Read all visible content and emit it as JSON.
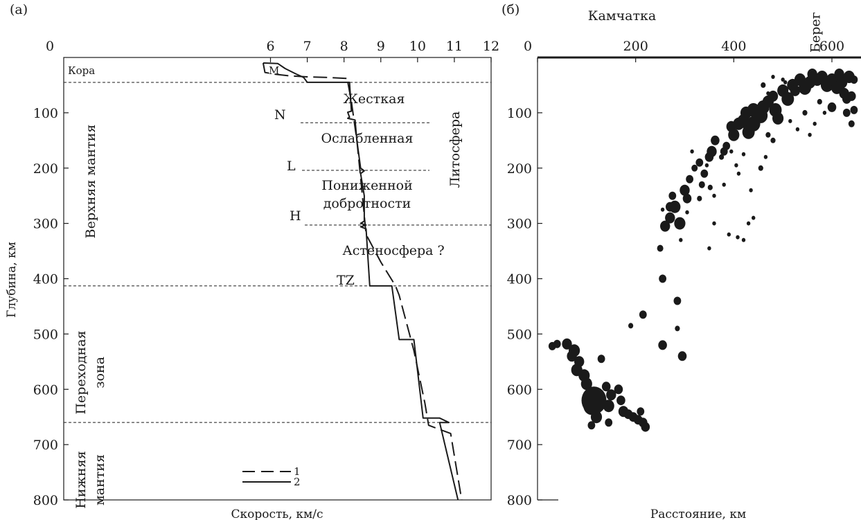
{
  "chart_data": [
    {
      "type": "line",
      "panel_label": "(а)",
      "xlabel": "Скорость, км/с",
      "ylabel": "Глубина, км",
      "xlim": [
        0,
        12
      ],
      "ylim": [
        800,
        0
      ],
      "x_axis_position": "top",
      "x_ticks": [
        0,
        6,
        7,
        8,
        9,
        10,
        11,
        12
      ],
      "y_ticks": [
        100,
        200,
        300,
        400,
        500,
        600,
        700,
        800
      ],
      "grid": false,
      "legend_position": "bottom-center",
      "series": [
        {
          "name": "1",
          "line_style": "dashed",
          "points": [
            [
              5.8,
              10
            ],
            [
              5.85,
              27
            ],
            [
              6.1,
              30
            ],
            [
              6.5,
              33
            ],
            [
              7.0,
              35
            ],
            [
              7.5,
              36
            ],
            [
              8.1,
              38
            ],
            [
              8.1,
              44
            ],
            [
              8.2,
              80
            ],
            [
              8.35,
              150
            ],
            [
              8.5,
              250
            ],
            [
              8.6,
              320
            ],
            [
              9.0,
              370
            ],
            [
              9.4,
              413
            ],
            [
              9.5,
              430
            ],
            [
              9.9,
              530
            ],
            [
              10.2,
              625
            ],
            [
              10.3,
              665
            ],
            [
              10.9,
              680
            ],
            [
              11.2,
              800
            ]
          ]
        },
        {
          "name": "2",
          "line_style": "solid",
          "points": [
            [
              5.8,
              10
            ],
            [
              6.2,
              11
            ],
            [
              6.4,
              20
            ],
            [
              6.7,
              30
            ],
            [
              6.9,
              36
            ],
            [
              7.0,
              45
            ],
            [
              8.15,
              45
            ],
            [
              8.2,
              97
            ],
            [
              8.1,
              99
            ],
            [
              8.15,
              108
            ],
            [
              8.1,
              110
            ],
            [
              8.3,
              113
            ],
            [
              8.35,
              150
            ],
            [
              8.45,
              200
            ],
            [
              8.55,
              205
            ],
            [
              8.45,
              210
            ],
            [
              8.55,
              250
            ],
            [
              8.55,
              296
            ],
            [
              8.45,
              300
            ],
            [
              8.6,
              303
            ],
            [
              8.45,
              306
            ],
            [
              8.6,
              310
            ],
            [
              8.7,
              413
            ],
            [
              9.3,
              413
            ],
            [
              9.5,
              510
            ],
            [
              9.9,
              510
            ],
            [
              10.15,
              652
            ],
            [
              10.6,
              652
            ],
            [
              10.85,
              660
            ],
            [
              10.6,
              660
            ],
            [
              11.1,
              800
            ]
          ]
        }
      ],
      "horizontal_lines": [
        45,
        118,
        204,
        303,
        413,
        660
      ],
      "annotations": {
        "crust": "Кора",
        "moho": "M",
        "n": "N",
        "l": "L",
        "h": "H",
        "tz": "TZ",
        "rigid": "Жесткая",
        "weakened": "Ослабленная",
        "low_q_1": "Пониженной",
        "low_q_2": "добротности",
        "asthenosphere": "Астеносфера ?",
        "lithosphere": "Литосфера",
        "upper_mantle": "Верхняя мантия",
        "transition_1": "Переходная",
        "transition_2": "зона",
        "lower_mantle_1": "Нижняя",
        "lower_mantle_2": "мантия"
      }
    },
    {
      "type": "scatter",
      "panel_label": "(б)",
      "title": "Камчатка",
      "xlabel": "Расстояние, км",
      "xlim": [
        0,
        650
      ],
      "ylim": [
        800,
        0
      ],
      "x_axis_position": "top",
      "x_ticks": [
        0,
        200,
        400,
        600
      ],
      "y_ticks": [
        100,
        200,
        300,
        400,
        500,
        600,
        700,
        800
      ],
      "grid": false,
      "shore_label": "Берег",
      "shore_x": 575,
      "events": [
        [
          30,
          522,
          6
        ],
        [
          40,
          518,
          6
        ],
        [
          60,
          518,
          8
        ],
        [
          75,
          530,
          9
        ],
        [
          70,
          540,
          8
        ],
        [
          85,
          550,
          8
        ],
        [
          80,
          565,
          9
        ],
        [
          95,
          575,
          9
        ],
        [
          100,
          590,
          9
        ],
        [
          110,
          610,
          10
        ],
        [
          110,
          630,
          13
        ],
        [
          115,
          620,
          20
        ],
        [
          120,
          650,
          9
        ],
        [
          110,
          665,
          6
        ],
        [
          130,
          545,
          6
        ],
        [
          140,
          595,
          7
        ],
        [
          150,
          610,
          8
        ],
        [
          145,
          630,
          9
        ],
        [
          145,
          660,
          6
        ],
        [
          165,
          600,
          7
        ],
        [
          170,
          620,
          7
        ],
        [
          175,
          640,
          8
        ],
        [
          185,
          645,
          7
        ],
        [
          195,
          650,
          7
        ],
        [
          205,
          655,
          7
        ],
        [
          215,
          660,
          7
        ],
        [
          220,
          668,
          7
        ],
        [
          210,
          640,
          6
        ],
        [
          190,
          485,
          4
        ],
        [
          215,
          465,
          6
        ],
        [
          255,
          400,
          6
        ],
        [
          255,
          520,
          7
        ],
        [
          285,
          440,
          6
        ],
        [
          285,
          490,
          4
        ],
        [
          295,
          540,
          7
        ],
        [
          250,
          345,
          5
        ],
        [
          260,
          305,
          8
        ],
        [
          270,
          290,
          8
        ],
        [
          280,
          270,
          9
        ],
        [
          290,
          300,
          9
        ],
        [
          270,
          270,
          7
        ],
        [
          275,
          250,
          6
        ],
        [
          300,
          240,
          8
        ],
        [
          305,
          255,
          7
        ],
        [
          310,
          220,
          6
        ],
        [
          320,
          200,
          5
        ],
        [
          330,
          190,
          6
        ],
        [
          335,
          230,
          5
        ],
        [
          340,
          210,
          6
        ],
        [
          350,
          180,
          7
        ],
        [
          355,
          170,
          8
        ],
        [
          362,
          150,
          7
        ],
        [
          375,
          180,
          4
        ],
        [
          380,
          170,
          6
        ],
        [
          385,
          160,
          6
        ],
        [
          395,
          125,
          8
        ],
        [
          400,
          140,
          9
        ],
        [
          410,
          120,
          9
        ],
        [
          420,
          115,
          10
        ],
        [
          425,
          100,
          9
        ],
        [
          430,
          135,
          10
        ],
        [
          440,
          95,
          10
        ],
        [
          440,
          120,
          11
        ],
        [
          455,
          105,
          11
        ],
        [
          460,
          90,
          10
        ],
        [
          470,
          80,
          9
        ],
        [
          480,
          70,
          8
        ],
        [
          485,
          95,
          10
        ],
        [
          490,
          110,
          9
        ],
        [
          500,
          60,
          9
        ],
        [
          510,
          75,
          10
        ],
        [
          520,
          50,
          9
        ],
        [
          525,
          60,
          8
        ],
        [
          535,
          40,
          9
        ],
        [
          545,
          55,
          10
        ],
        [
          555,
          45,
          9
        ],
        [
          560,
          30,
          8
        ],
        [
          570,
          40,
          9
        ],
        [
          580,
          35,
          9
        ],
        [
          590,
          50,
          10
        ],
        [
          600,
          40,
          9
        ],
        [
          610,
          55,
          9
        ],
        [
          620,
          45,
          9
        ],
        [
          625,
          65,
          8
        ],
        [
          630,
          75,
          7
        ],
        [
          640,
          70,
          7
        ],
        [
          635,
          35,
          9
        ],
        [
          615,
          30,
          8
        ],
        [
          645,
          40,
          6
        ],
        [
          600,
          90,
          7
        ],
        [
          630,
          100,
          6
        ],
        [
          640,
          120,
          5
        ],
        [
          645,
          95,
          6
        ],
        [
          460,
          50,
          4
        ],
        [
          470,
          65,
          3
        ],
        [
          500,
          40,
          3
        ],
        [
          515,
          115,
          3
        ],
        [
          530,
          130,
          3
        ],
        [
          545,
          100,
          4
        ],
        [
          555,
          140,
          3
        ],
        [
          565,
          120,
          3
        ],
        [
          575,
          80,
          4
        ],
        [
          585,
          100,
          3
        ],
        [
          430,
          300,
          3
        ],
        [
          420,
          330,
          3
        ],
        [
          440,
          290,
          3
        ],
        [
          390,
          320,
          3
        ],
        [
          360,
          300,
          3
        ],
        [
          350,
          345,
          3
        ],
        [
          345,
          195,
          3
        ],
        [
          315,
          170,
          3
        ],
        [
          255,
          275,
          3
        ],
        [
          292,
          330,
          3
        ],
        [
          455,
          200,
          4
        ],
        [
          465,
          180,
          3
        ],
        [
          380,
          230,
          3
        ],
        [
          360,
          250,
          3
        ],
        [
          408,
          325,
          3
        ],
        [
          420,
          175,
          3
        ],
        [
          470,
          140,
          4
        ],
        [
          480,
          150,
          4
        ],
        [
          405,
          195,
          3
        ],
        [
          410,
          210,
          3
        ],
        [
          435,
          240,
          3
        ],
        [
          352,
          235,
          4
        ],
        [
          330,
          255,
          4
        ],
        [
          305,
          280,
          3
        ],
        [
          395,
          170,
          3
        ],
        [
          480,
          35,
          3
        ],
        [
          505,
          45,
          3
        ]
      ]
    }
  ]
}
